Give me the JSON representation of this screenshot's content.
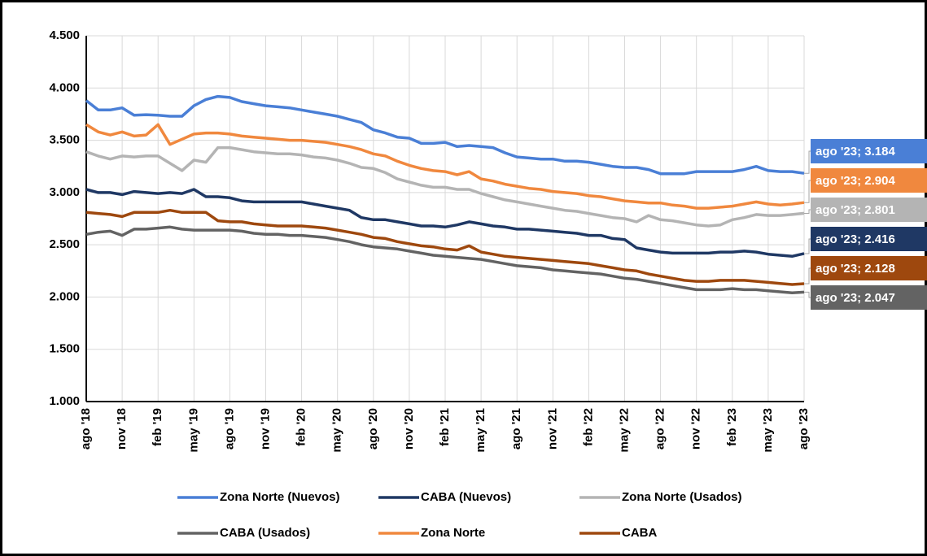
{
  "chart_data": {
    "type": "line",
    "categories": [
      "ago '18",
      null,
      null,
      "nov '18",
      null,
      null,
      "feb '19",
      null,
      null,
      "may '19",
      null,
      null,
      "ago '19",
      null,
      null,
      "nov '19",
      null,
      null,
      "feb '20",
      null,
      null,
      "may '20",
      null,
      null,
      "ago '20",
      null,
      null,
      "nov '20",
      null,
      null,
      "feb '21",
      null,
      null,
      "may '21",
      null,
      null,
      "ago '21",
      null,
      null,
      "nov '21",
      null,
      null,
      "feb '22",
      null,
      null,
      "may '22",
      null,
      null,
      "ago '22",
      null,
      null,
      "nov '22",
      null,
      null,
      "feb '23",
      null,
      null,
      "may '23",
      null,
      null,
      "ago '23"
    ],
    "ylim": [
      1000,
      4500
    ],
    "yticks": [
      {
        "value": 1000,
        "label": "1.000"
      },
      {
        "value": 1500,
        "label": "1.500"
      },
      {
        "value": 2000,
        "label": "2.000"
      },
      {
        "value": 2500,
        "label": "2.500"
      },
      {
        "value": 3000,
        "label": "3.000"
      },
      {
        "value": 3500,
        "label": "3.500"
      },
      {
        "value": 4000,
        "label": "4.000"
      },
      {
        "value": 4500,
        "label": "4.500"
      }
    ],
    "grid": true,
    "legend": "bottom",
    "series": [
      {
        "name": "Zona Norte (Nuevos)",
        "color": "#4a7fd6",
        "values": [
          3880,
          3790,
          3790,
          3810,
          3740,
          3745,
          3740,
          3730,
          3730,
          3830,
          3890,
          3920,
          3910,
          3870,
          3850,
          3830,
          3820,
          3810,
          3790,
          3770,
          3750,
          3730,
          3700,
          3670,
          3600,
          3570,
          3530,
          3520,
          3470,
          3470,
          3480,
          3440,
          3450,
          3440,
          3430,
          3380,
          3340,
          3330,
          3320,
          3320,
          3300,
          3300,
          3290,
          3270,
          3250,
          3240,
          3240,
          3220,
          3180,
          3180,
          3180,
          3200,
          3200,
          3200,
          3200,
          3220,
          3250,
          3210,
          3200,
          3200,
          3184
        ],
        "value_labels": [
          null,
          null,
          null,
          null,
          null,
          null,
          null,
          null,
          null,
          null,
          null,
          null,
          null,
          null,
          null,
          null,
          null,
          null,
          null,
          null,
          null,
          null,
          null,
          null,
          null,
          null,
          null,
          null,
          null,
          null,
          null,
          null,
          null,
          null,
          null,
          null,
          null,
          null,
          null,
          null,
          null,
          null,
          null,
          null,
          null,
          null,
          null,
          null,
          null,
          null,
          null,
          null,
          null,
          null,
          null,
          null,
          null,
          null,
          null,
          null,
          "ago '23; 3.184"
        ]
      },
      {
        "name": "CABA (Nuevos)",
        "color": "#1f3864",
        "values": [
          3030,
          3000,
          3000,
          2980,
          3010,
          3000,
          2990,
          3000,
          2990,
          3030,
          2960,
          2960,
          2950,
          2920,
          2910,
          2910,
          2910,
          2910,
          2910,
          2890,
          2870,
          2850,
          2830,
          2760,
          2740,
          2740,
          2720,
          2700,
          2680,
          2680,
          2670,
          2690,
          2720,
          2700,
          2680,
          2670,
          2650,
          2650,
          2640,
          2630,
          2620,
          2610,
          2590,
          2590,
          2560,
          2550,
          2470,
          2450,
          2430,
          2420,
          2420,
          2420,
          2420,
          2430,
          2430,
          2440,
          2430,
          2410,
          2400,
          2390,
          2416
        ],
        "value_labels": [
          null,
          null,
          null,
          null,
          null,
          null,
          null,
          null,
          null,
          null,
          null,
          null,
          null,
          null,
          null,
          null,
          null,
          null,
          null,
          null,
          null,
          null,
          null,
          null,
          null,
          null,
          null,
          null,
          null,
          null,
          null,
          null,
          null,
          null,
          null,
          null,
          null,
          null,
          null,
          null,
          null,
          null,
          null,
          null,
          null,
          null,
          null,
          null,
          null,
          null,
          null,
          null,
          null,
          null,
          null,
          null,
          null,
          null,
          null,
          null,
          "ago '23; 2.416"
        ]
      },
      {
        "name": "Zona Norte (Usados)",
        "color": "#b4b4b4",
        "values": [
          3390,
          3350,
          3320,
          3350,
          3340,
          3350,
          3350,
          3280,
          3210,
          3310,
          3290,
          3430,
          3430,
          3410,
          3390,
          3380,
          3370,
          3370,
          3360,
          3340,
          3330,
          3310,
          3280,
          3240,
          3230,
          3190,
          3130,
          3100,
          3070,
          3050,
          3050,
          3030,
          3030,
          2990,
          2960,
          2930,
          2910,
          2890,
          2870,
          2850,
          2830,
          2820,
          2800,
          2780,
          2760,
          2750,
          2720,
          2780,
          2740,
          2730,
          2710,
          2690,
          2680,
          2690,
          2740,
          2760,
          2790,
          2780,
          2780,
          2790,
          2801
        ],
        "value_labels": [
          null,
          null,
          null,
          null,
          null,
          null,
          null,
          null,
          null,
          null,
          null,
          null,
          null,
          null,
          null,
          null,
          null,
          null,
          null,
          null,
          null,
          null,
          null,
          null,
          null,
          null,
          null,
          null,
          null,
          null,
          null,
          null,
          null,
          null,
          null,
          null,
          null,
          null,
          null,
          null,
          null,
          null,
          null,
          null,
          null,
          null,
          null,
          null,
          null,
          null,
          null,
          null,
          null,
          null,
          null,
          null,
          null,
          null,
          null,
          null,
          "ago '23; 2.801"
        ]
      },
      {
        "name": "CABA (Usados)",
        "color": "#636363",
        "values": [
          2600,
          2620,
          2630,
          2590,
          2650,
          2650,
          2660,
          2670,
          2650,
          2640,
          2640,
          2640,
          2640,
          2630,
          2610,
          2600,
          2600,
          2590,
          2590,
          2580,
          2570,
          2550,
          2530,
          2500,
          2480,
          2470,
          2460,
          2440,
          2420,
          2400,
          2390,
          2380,
          2370,
          2360,
          2340,
          2320,
          2300,
          2290,
          2280,
          2260,
          2250,
          2240,
          2230,
          2220,
          2200,
          2180,
          2170,
          2150,
          2130,
          2110,
          2090,
          2070,
          2070,
          2070,
          2080,
          2070,
          2070,
          2060,
          2050,
          2040,
          2047
        ],
        "value_labels": [
          null,
          null,
          null,
          null,
          null,
          null,
          null,
          null,
          null,
          null,
          null,
          null,
          null,
          null,
          null,
          null,
          null,
          null,
          null,
          null,
          null,
          null,
          null,
          null,
          null,
          null,
          null,
          null,
          null,
          null,
          null,
          null,
          null,
          null,
          null,
          null,
          null,
          null,
          null,
          null,
          null,
          null,
          null,
          null,
          null,
          null,
          null,
          null,
          null,
          null,
          null,
          null,
          null,
          null,
          null,
          null,
          null,
          null,
          null,
          null,
          "ago '23; 2.047"
        ]
      },
      {
        "name": "Zona Norte",
        "color": "#f0883e",
        "values": [
          3650,
          3580,
          3550,
          3580,
          3540,
          3550,
          3650,
          3460,
          3510,
          3560,
          3570,
          3570,
          3560,
          3540,
          3530,
          3520,
          3510,
          3500,
          3500,
          3490,
          3480,
          3460,
          3440,
          3410,
          3370,
          3350,
          3300,
          3260,
          3230,
          3210,
          3200,
          3170,
          3200,
          3130,
          3110,
          3080,
          3060,
          3040,
          3030,
          3010,
          3000,
          2990,
          2970,
          2960,
          2940,
          2920,
          2910,
          2900,
          2900,
          2880,
          2870,
          2850,
          2850,
          2860,
          2870,
          2890,
          2910,
          2890,
          2880,
          2890,
          2904
        ],
        "value_labels": [
          null,
          null,
          null,
          null,
          null,
          null,
          null,
          null,
          null,
          null,
          null,
          null,
          null,
          null,
          null,
          null,
          null,
          null,
          null,
          null,
          null,
          null,
          null,
          null,
          null,
          null,
          null,
          null,
          null,
          null,
          null,
          null,
          null,
          null,
          null,
          null,
          null,
          null,
          null,
          null,
          null,
          null,
          null,
          null,
          null,
          null,
          null,
          null,
          null,
          null,
          null,
          null,
          null,
          null,
          null,
          null,
          null,
          null,
          null,
          null,
          "ago '23; 2.904"
        ]
      },
      {
        "name": "CABA",
        "color": "#9e480e",
        "values": [
          2810,
          2800,
          2790,
          2770,
          2810,
          2810,
          2810,
          2830,
          2810,
          2810,
          2810,
          2730,
          2720,
          2720,
          2700,
          2690,
          2680,
          2680,
          2680,
          2670,
          2660,
          2640,
          2620,
          2600,
          2570,
          2560,
          2530,
          2510,
          2490,
          2480,
          2460,
          2450,
          2490,
          2430,
          2410,
          2390,
          2380,
          2370,
          2360,
          2350,
          2340,
          2330,
          2320,
          2300,
          2280,
          2260,
          2250,
          2220,
          2200,
          2180,
          2160,
          2150,
          2150,
          2160,
          2160,
          2160,
          2150,
          2140,
          2130,
          2120,
          2128
        ],
        "value_labels": [
          null,
          null,
          null,
          null,
          null,
          null,
          null,
          null,
          null,
          null,
          null,
          null,
          null,
          null,
          null,
          null,
          null,
          null,
          null,
          null,
          null,
          null,
          null,
          null,
          null,
          null,
          null,
          null,
          null,
          null,
          null,
          null,
          null,
          null,
          null,
          null,
          null,
          null,
          null,
          null,
          null,
          null,
          null,
          null,
          null,
          null,
          null,
          null,
          null,
          null,
          null,
          null,
          null,
          null,
          null,
          null,
          null,
          null,
          null,
          null,
          "ago '23; 2.128"
        ]
      }
    ]
  }
}
